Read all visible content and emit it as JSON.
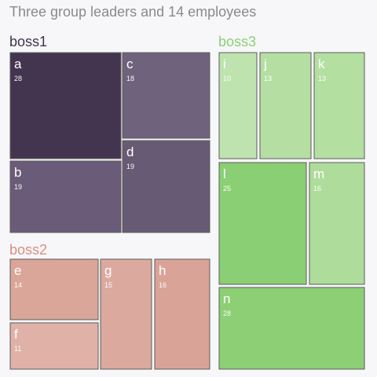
{
  "chart_data": {
    "type": "treemap",
    "title": "Three group leaders and 14 employees",
    "groups": [
      {
        "name": "boss1",
        "label_color": "#3f3450",
        "fill_color": "#6b5f7a",
        "children": [
          {
            "name": "a",
            "value": 28
          },
          {
            "name": "c",
            "value": 18
          },
          {
            "name": "d",
            "value": 19
          },
          {
            "name": "b",
            "value": 19
          }
        ]
      },
      {
        "name": "boss2",
        "label_color": "#d9907f",
        "fill_color": "#d9a89c",
        "children": [
          {
            "name": "e",
            "value": 14
          },
          {
            "name": "f",
            "value": 11
          },
          {
            "name": "g",
            "value": 15
          },
          {
            "name": "h",
            "value": 16
          }
        ]
      },
      {
        "name": "boss3",
        "label_color": "#8ccf75",
        "fill_color": "#a7d995",
        "children": [
          {
            "name": "i",
            "value": 10
          },
          {
            "name": "j",
            "value": 13
          },
          {
            "name": "k",
            "value": 13
          },
          {
            "name": "l",
            "value": 25
          },
          {
            "name": "m",
            "value": 16
          },
          {
            "name": "n",
            "value": 28
          }
        ]
      }
    ],
    "leaf_colors": {
      "a": "#43344f",
      "b": "#6a5c78",
      "c": "#6f627d",
      "d": "#675a75",
      "e": "#d9a699",
      "f": "#e0b1a6",
      "g": "#dba99d",
      "h": "#d9a497",
      "i": "#bfe3ae",
      "j": "#b5dfa2",
      "k": "#b3dfa0",
      "l": "#8bcf75",
      "m": "#aedc9b",
      "n": "#8ccf75"
    }
  }
}
